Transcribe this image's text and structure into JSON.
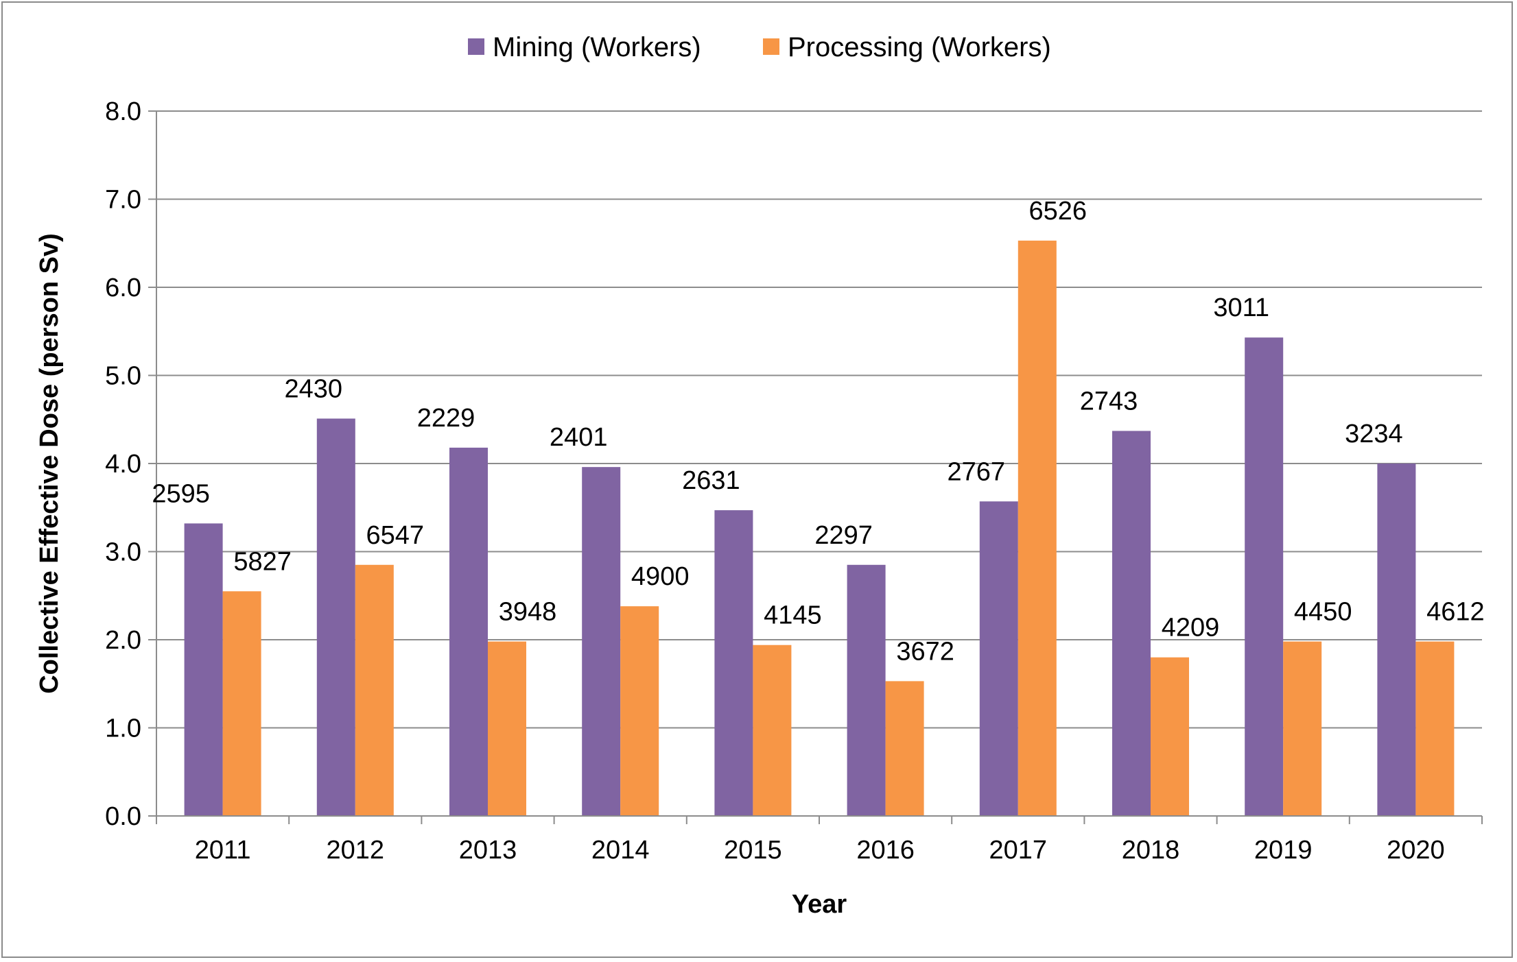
{
  "chart_data": {
    "type": "bar",
    "title": "",
    "xlabel": "Year",
    "ylabel": "Collective Effective Dose (person Sv)",
    "ylim": [
      0,
      8
    ],
    "ytick_step": 1,
    "ytick_labels": [
      "0.0",
      "1.0",
      "2.0",
      "3.0",
      "4.0",
      "5.0",
      "6.0",
      "7.0",
      "8.0"
    ],
    "grid": true,
    "legend_position": "top-center",
    "categories": [
      "2011",
      "2012",
      "2013",
      "2014",
      "2015",
      "2016",
      "2017",
      "2018",
      "2019",
      "2020"
    ],
    "series": [
      {
        "name": "Mining (Workers)",
        "color": "#8064A2",
        "values": [
          3.32,
          4.51,
          4.18,
          3.96,
          3.47,
          2.85,
          3.57,
          4.37,
          5.43,
          4.0
        ],
        "labels": [
          "2595",
          "2430",
          "2229",
          "2401",
          "2631",
          "2297",
          "2767",
          "2743",
          "3011",
          "3234"
        ]
      },
      {
        "name": "Processing (Workers)",
        "color": "#F79646",
        "values": [
          2.55,
          2.85,
          1.98,
          2.38,
          1.94,
          1.53,
          6.53,
          1.8,
          1.98,
          1.98
        ],
        "labels": [
          "5827",
          "6547",
          "3948",
          "4900",
          "4145",
          "3672",
          "6526",
          "4209",
          "4450",
          "4612"
        ]
      }
    ]
  }
}
